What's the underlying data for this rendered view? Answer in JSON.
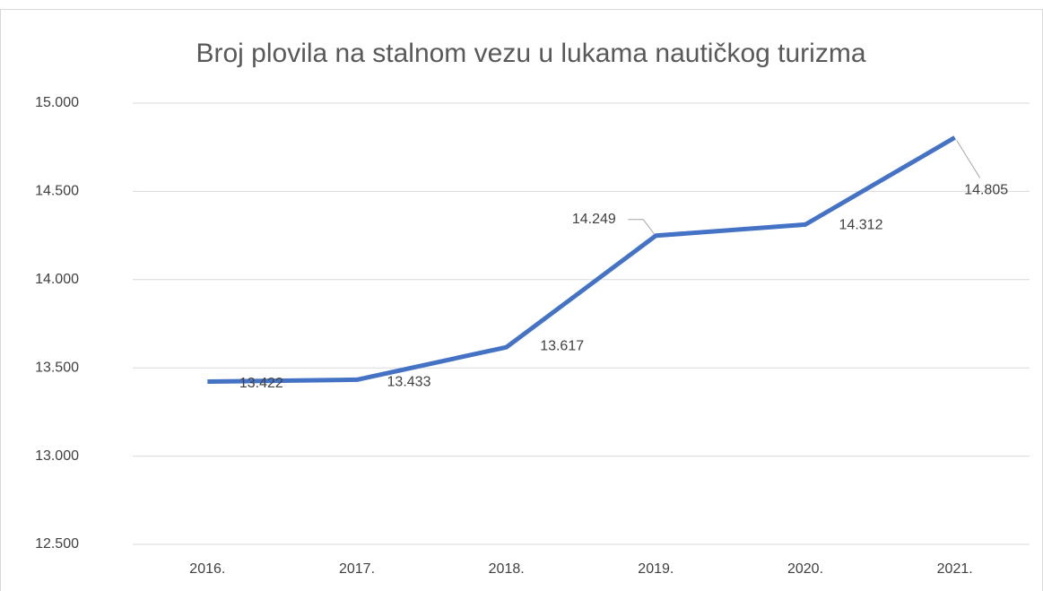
{
  "chart_data": {
    "type": "line",
    "title": "Broj plovila na stalnom vezu u lukama nautičkog turizma",
    "categories": [
      "2016.",
      "2017.",
      "2018.",
      "2019.",
      "2020.",
      "2021."
    ],
    "series": [
      {
        "name": "Broj plovila",
        "color": "#4472c4",
        "values": [
          13422,
          13433,
          13617,
          14249,
          14312,
          14805
        ],
        "value_labels": [
          "13.422",
          "13.433",
          "13.617",
          "14.249",
          "14.312",
          "14.805"
        ]
      }
    ],
    "ylim": [
      12500,
      15000
    ],
    "yticks": [
      {
        "value": 12500,
        "label": "12.500"
      },
      {
        "value": 13000,
        "label": "13.000"
      },
      {
        "value": 13500,
        "label": "13.500"
      },
      {
        "value": 14000,
        "label": "14.000"
      },
      {
        "value": 14500,
        "label": "14.500"
      },
      {
        "value": 15000,
        "label": "15.000"
      }
    ],
    "grid": true
  }
}
